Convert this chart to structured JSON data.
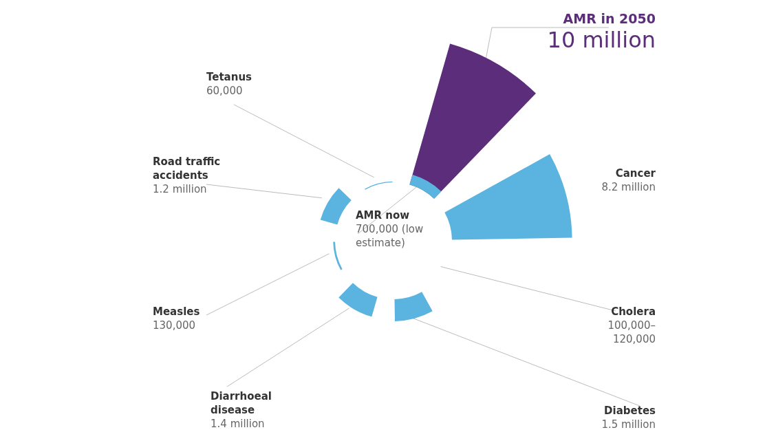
{
  "chart_data": {
    "type": "other",
    "categories": [
      "AMR now",
      "Cancer",
      "Cholera",
      "Diabetes",
      "Diarrhoeal disease",
      "Measles",
      "Road traffic accidents",
      "Tetanus",
      "AMR in 2050"
    ],
    "values": [
      700000,
      8200000,
      null,
      1500000,
      1400000,
      130000,
      1200000,
      60000,
      10000000
    ],
    "value_labels": [
      "700,000 (low estimate)",
      "8.2 million",
      "100,000–120,000",
      "1.5 million",
      "1.4 million",
      "130,000",
      "1.2 million",
      "60,000",
      "10 million"
    ],
    "colors": [
      "#5ab4df",
      "#5ab4df",
      null,
      "#5ab4df",
      "#5ab4df",
      "#5ab4df",
      "#5ab4df",
      "#5ab4df",
      "#5c2d7a"
    ]
  }
}
